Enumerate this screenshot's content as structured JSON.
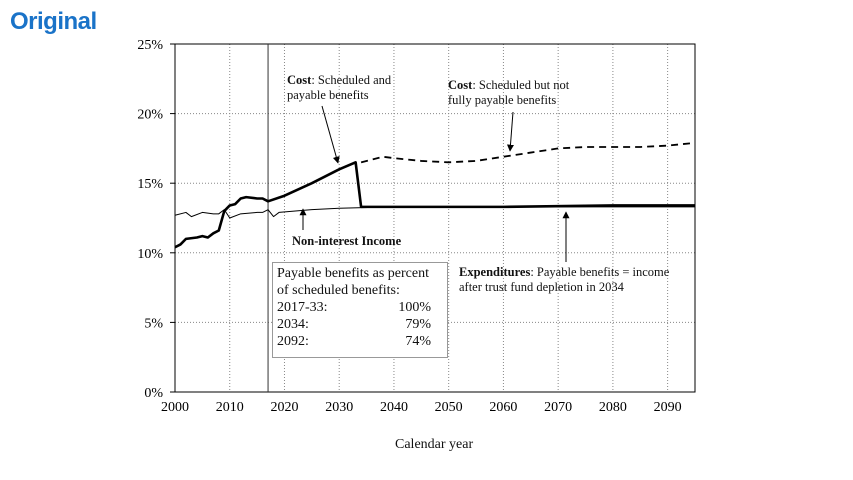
{
  "header": {
    "label": "Original"
  },
  "chart_data": {
    "type": "line",
    "xlabel": "Calendar year",
    "ylabel": "",
    "xlim": [
      2000,
      2095
    ],
    "ylim": [
      0,
      25
    ],
    "xticks": [
      2000,
      2010,
      2020,
      2030,
      2040,
      2050,
      2060,
      2070,
      2080,
      2090
    ],
    "yticks": [
      "0%",
      "5%",
      "10%",
      "15%",
      "20%",
      "25%"
    ],
    "grid": true,
    "reference_line_x": 2017,
    "series": [
      {
        "style": "thick-solid",
        "x": [
          2000,
          2001,
          2002,
          2004,
          2005,
          2006,
          2007,
          2008,
          2009,
          2010,
          2011,
          2012,
          2013,
          2015,
          2016,
          2017,
          2020,
          2025,
          2030,
          2033,
          2034,
          2040,
          2060,
          2080,
          2095
        ],
        "y": [
          10.4,
          10.6,
          11.0,
          11.1,
          11.2,
          11.1,
          11.4,
          11.6,
          13.0,
          13.4,
          13.5,
          13.9,
          14.0,
          13.9,
          13.9,
          13.7,
          14.1,
          15.0,
          16.0,
          16.5,
          13.3,
          13.3,
          13.3,
          13.4,
          13.4
        ]
      },
      {
        "style": "dashed",
        "x": [
          2034,
          2038,
          2040,
          2045,
          2050,
          2055,
          2060,
          2065,
          2070,
          2075,
          2080,
          2085,
          2090,
          2095
        ],
        "y": [
          16.5,
          16.9,
          16.8,
          16.6,
          16.5,
          16.6,
          16.9,
          17.2,
          17.5,
          17.6,
          17.6,
          17.6,
          17.7,
          17.9
        ]
      },
      {
        "style": "thin-solid",
        "x": [
          2000,
          2002,
          2003,
          2005,
          2007,
          2008,
          2009,
          2010,
          2012,
          2015,
          2016,
          2017,
          2018,
          2019,
          2025,
          2030,
          2040,
          2095
        ],
        "y": [
          12.7,
          12.9,
          12.6,
          12.9,
          12.8,
          12.8,
          13.1,
          12.5,
          12.8,
          12.9,
          12.9,
          13.1,
          12.6,
          12.9,
          13.1,
          13.2,
          13.3,
          13.3
        ]
      }
    ],
    "annotations": {
      "cost_scheduled": {
        "bold": "Cost",
        "text": ": Scheduled and",
        "line2": "payable benefits"
      },
      "cost_unpayable": {
        "bold": "Cost",
        "text": ": Scheduled but not",
        "line2": "fully payable benefits"
      },
      "income": "Non-interest Income",
      "expenditures": {
        "bold": "Expenditures",
        "text": ": Payable benefits = income",
        "line2": "after trust fund depletion in 2034"
      }
    },
    "table": {
      "title1": "Payable benefits as percent",
      "title2": "of scheduled benefits:",
      "rows": [
        {
          "label": "2017-33:",
          "value": "100%"
        },
        {
          "label": "2034:",
          "value": "79%"
        },
        {
          "label": "2092:",
          "value": "74%"
        }
      ]
    }
  }
}
